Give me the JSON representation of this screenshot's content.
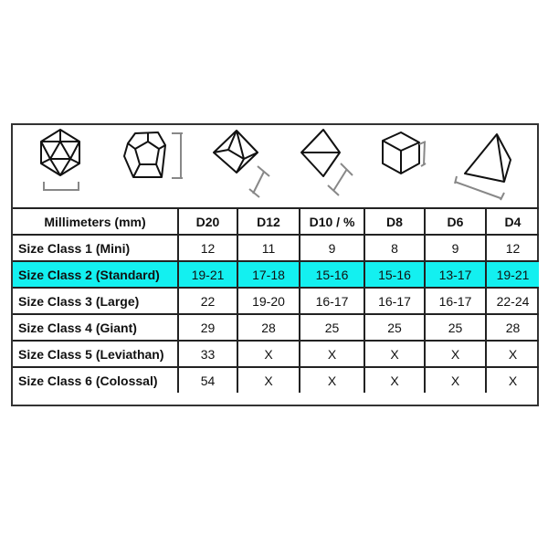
{
  "dice_icons": [
    "d20-icon",
    "d12-icon",
    "d10-icon",
    "d8-icon",
    "d6-icon",
    "d4-icon"
  ],
  "highlight_color": "#13f0f0",
  "table": {
    "headers": [
      "Millimeters (mm)",
      "D20",
      "D12",
      "D10 / %",
      "D8",
      "D6",
      "D4"
    ],
    "rows": [
      [
        "Size Class 1 (Mini)",
        "12",
        "11",
        "9",
        "8",
        "9",
        "12"
      ],
      [
        "Size Class 2 (Standard)",
        "19-21",
        "17-18",
        "15-16",
        "15-16",
        "13-17",
        "19-21"
      ],
      [
        "Size Class 3 (Large)",
        "22",
        "19-20",
        "16-17",
        "16-17",
        "16-17",
        "22-24"
      ],
      [
        "Size Class 4 (Giant)",
        "29",
        "28",
        "25",
        "25",
        "25",
        "28"
      ],
      [
        "Size Class 5 (Leviathan)",
        "33",
        "X",
        "X",
        "X",
        "X",
        "X"
      ],
      [
        "Size Class 6 (Colossal)",
        "54",
        "X",
        "X",
        "X",
        "X",
        "X"
      ]
    ],
    "highlighted_row": 1
  }
}
